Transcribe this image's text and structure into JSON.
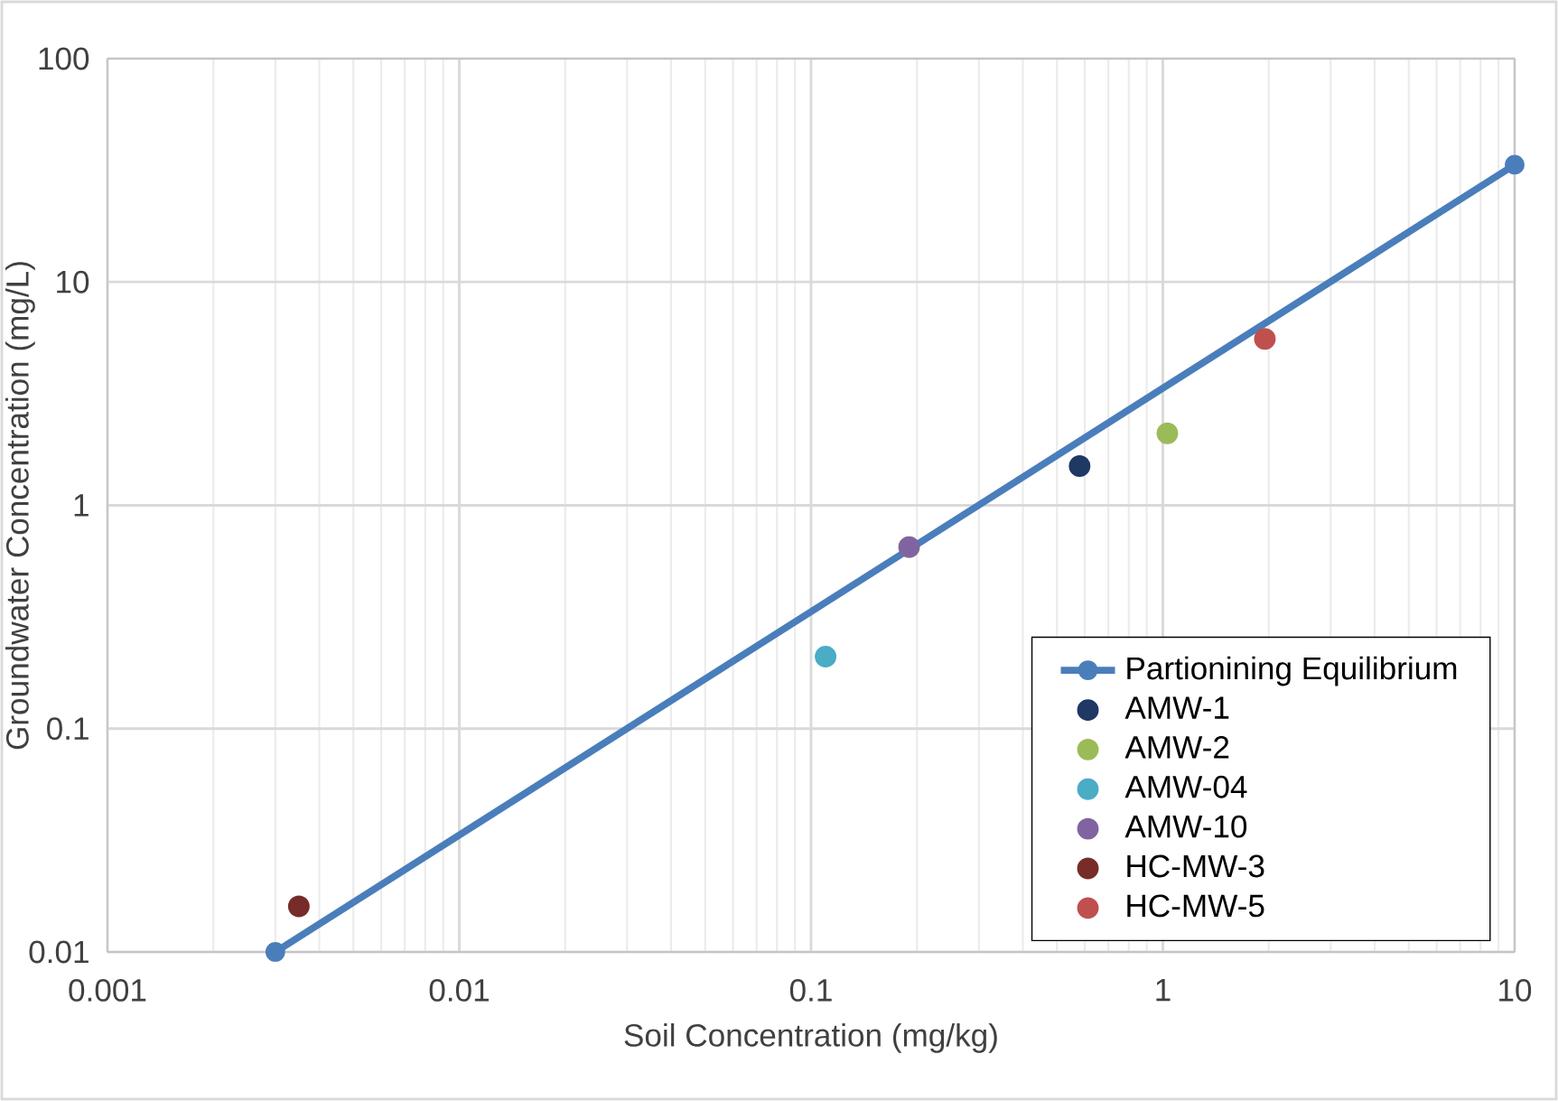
{
  "chart_data": {
    "type": "scatter",
    "xlabel": "Soil Concentration (mg/kg)",
    "ylabel": "Groundwater Concentration (mg/L)",
    "log": "xy",
    "xlim": [
      0.001,
      10
    ],
    "ylim": [
      0.01,
      100
    ],
    "xticks": [
      0.001,
      0.01,
      0.1,
      1,
      10
    ],
    "yticks": [
      0.01,
      0.1,
      1,
      10,
      100
    ],
    "grid": true,
    "legend": "bottom right",
    "marker": "circle",
    "series": [
      {
        "name": "Partionining Equilibrium",
        "type": "line",
        "color": "#4a7ebb",
        "x": [
          0.003,
          10
        ],
        "values": [
          0.01,
          33.5
        ]
      },
      {
        "name": "AMW-1",
        "color": "#1f3864",
        "x": [
          0.58
        ],
        "values": [
          1.5
        ]
      },
      {
        "name": "AMW-2",
        "color": "#9bbb59",
        "x": [
          1.03
        ],
        "values": [
          2.1
        ]
      },
      {
        "name": "AMW-04",
        "color": "#4bacc6",
        "x": [
          0.11
        ],
        "values": [
          0.21
        ]
      },
      {
        "name": "AMW-10",
        "color": "#8064a2",
        "x": [
          0.19
        ],
        "values": [
          0.65
        ]
      },
      {
        "name": "HC-MW-3",
        "color": "#772c2a",
        "x": [
          0.0035
        ],
        "values": [
          0.016
        ]
      },
      {
        "name": "HC-MW-5",
        "color": "#c0504d",
        "x": [
          1.95
        ],
        "values": [
          5.56
        ]
      }
    ]
  }
}
